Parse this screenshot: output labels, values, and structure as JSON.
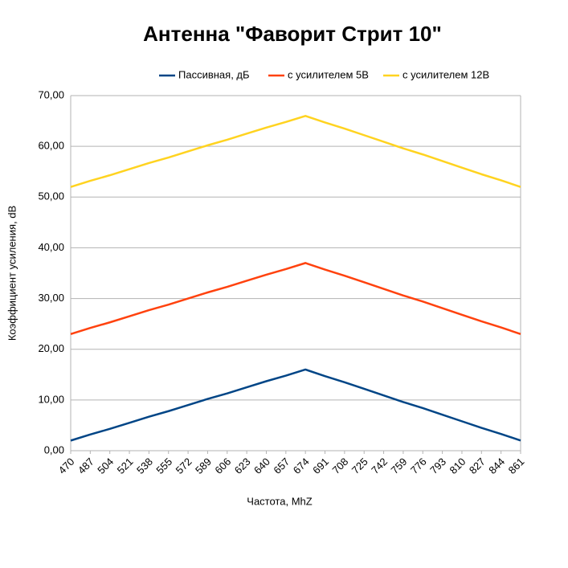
{
  "chart_data": {
    "type": "line",
    "title": "Антенна \"Фаворит Стрит 10\"",
    "x_label": "Частота, MhZ",
    "y_label": "Коэффициент усиления, dB",
    "categories": [
      "470",
      "487",
      "504",
      "521",
      "538",
      "555",
      "572",
      "589",
      "606",
      "623",
      "640",
      "657",
      "674",
      "691",
      "708",
      "725",
      "742",
      "759",
      "776",
      "793",
      "810",
      "827",
      "844",
      "861"
    ],
    "series": [
      {
        "name": "Пассивная, дБ",
        "color": "#004586",
        "values": [
          2,
          3.2,
          4.3,
          5.5,
          6.7,
          7.8,
          9,
          10.2,
          11.3,
          12.5,
          13.7,
          14.8,
          16,
          14.7,
          13.5,
          12.2,
          10.9,
          9.6,
          8.4,
          7.1,
          5.8,
          4.5,
          3.3,
          2
        ]
      },
      {
        "name": "с усилителем 5В",
        "color": "#ff420e",
        "values": [
          23,
          24.2,
          25.3,
          26.5,
          27.7,
          28.8,
          30,
          31.2,
          32.3,
          33.5,
          34.7,
          35.8,
          37,
          35.7,
          34.5,
          33.2,
          31.9,
          30.6,
          29.4,
          28.1,
          26.8,
          25.5,
          24.3,
          23
        ]
      },
      {
        "name": "с усилителем 12В",
        "color": "#ffd320",
        "values": [
          52,
          53.2,
          54.3,
          55.5,
          56.7,
          57.8,
          59,
          60.2,
          61.3,
          62.5,
          63.7,
          64.8,
          66,
          64.7,
          63.5,
          62.2,
          60.9,
          59.6,
          58.4,
          57.1,
          55.8,
          54.5,
          53.3,
          52
        ]
      }
    ],
    "ylim": [
      0,
      70
    ],
    "yticks": [
      {
        "value": 0,
        "label": "0,00"
      },
      {
        "value": 10,
        "label": "10,00"
      },
      {
        "value": 20,
        "label": "20,00"
      },
      {
        "value": 30,
        "label": "30,00"
      },
      {
        "value": 40,
        "label": "40,00"
      },
      {
        "value": 50,
        "label": "50,00"
      },
      {
        "value": 60,
        "label": "60,00"
      },
      {
        "value": 70,
        "label": "70,00"
      }
    ],
    "grid": true,
    "legend": "top"
  }
}
